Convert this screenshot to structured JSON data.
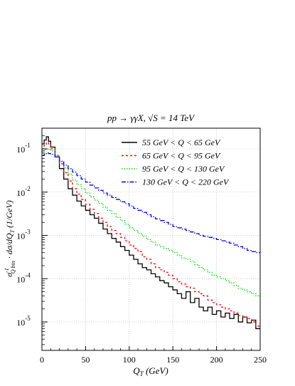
{
  "chart_data": {
    "type": "line",
    "title": "pp → γγX, √S = 14 TeV",
    "xlabel": "Q_T (GeV)",
    "ylabel": "σ_Qbin⁻¹ · dσ/dQ_T (1/GeV)",
    "xlim": [
      0,
      250
    ],
    "ylim": [
      2.2e-06,
      0.3
    ],
    "yscale": "log",
    "grid": true,
    "legend_position": "top-right",
    "x_ticks": [
      {
        "value": 0,
        "label": "0"
      },
      {
        "value": 50,
        "label": "50"
      },
      {
        "value": 100,
        "label": "100"
      },
      {
        "value": 150,
        "label": "150"
      },
      {
        "value": 200,
        "label": "200"
      },
      {
        "value": 250,
        "label": "250"
      }
    ],
    "y_ticks": [
      {
        "value": 0.1,
        "base": "10",
        "exp": "-1"
      },
      {
        "value": 0.01,
        "base": "10",
        "exp": "-2"
      },
      {
        "value": 0.001,
        "base": "10",
        "exp": "-3"
      },
      {
        "value": 0.0001,
        "base": "10",
        "exp": "-4"
      },
      {
        "value": 1e-05,
        "base": "10",
        "exp": "-5"
      }
    ],
    "x": [
      0,
      2.5,
      5,
      7.5,
      10,
      15,
      20,
      25,
      30,
      35,
      40,
      45,
      50,
      55,
      60,
      65,
      70,
      75,
      80,
      85,
      90,
      95,
      100,
      105,
      110,
      115,
      120,
      125,
      130,
      135,
      140,
      145,
      150,
      155,
      160,
      165,
      170,
      175,
      180,
      185,
      190,
      195,
      200,
      205,
      210,
      215,
      220,
      225,
      230,
      235,
      240,
      245,
      250
    ],
    "series": [
      {
        "name": "55 GeV < Q <  65 GeV",
        "color": "#000000",
        "dash": "solid",
        "values": [
          0.13,
          0.16,
          0.19,
          0.15,
          0.11,
          0.065,
          0.035,
          0.02,
          0.012,
          0.0085,
          0.0062,
          0.0048,
          0.0038,
          0.003,
          0.0025,
          0.0019,
          0.0014,
          0.0011,
          0.00085,
          0.0007,
          0.00055,
          0.00045,
          0.00035,
          0.00028,
          0.00022,
          0.00018,
          0.00016,
          0.00013,
          0.00011,
          9e-05,
          8e-05,
          6.5e-05,
          5.5e-05,
          4.5e-05,
          3.5e-05,
          5e-05,
          2.8e-05,
          3.5e-05,
          2.2e-05,
          1.8e-05,
          2.2e-05,
          1.5e-05,
          1.8e-05,
          1.3e-05,
          1.6e-05,
          1.2e-05,
          1.5e-05,
          1e-05,
          1.3e-05,
          9.5e-06,
          1.1e-05,
          7e-06,
          5.5e-06
        ]
      },
      {
        "name": "65 GeV < Q <  95 GeV",
        "color": "#ff0000",
        "dash": "3,3",
        "values": [
          0.1,
          0.12,
          0.14,
          0.13,
          0.1,
          0.07,
          0.045,
          0.028,
          0.018,
          0.012,
          0.009,
          0.0068,
          0.0052,
          0.004,
          0.0032,
          0.0025,
          0.002,
          0.0016,
          0.0013,
          0.0011,
          0.0009,
          0.00075,
          0.0006,
          0.0005,
          0.00042,
          0.00032,
          0.00028,
          0.00022,
          0.00018,
          0.00016,
          0.00014,
          0.00012,
          0.0001,
          8.5e-05,
          7.5e-05,
          6.5e-05,
          6e-05,
          5e-05,
          4.5e-05,
          4e-05,
          3.2e-05,
          2.8e-05,
          2.5e-05,
          2.2e-05,
          2e-05,
          1.8e-05,
          1.6e-05,
          1.4e-05,
          1.3e-05,
          1.2e-05,
          1e-05,
          8e-06,
          6e-06
        ]
      },
      {
        "name": "95 GeV < Q < 130 GeV",
        "color": "#00dd00",
        "dash": "1.5,2",
        "values": [
          0.085,
          0.095,
          0.1,
          0.098,
          0.09,
          0.07,
          0.05,
          0.036,
          0.026,
          0.019,
          0.015,
          0.012,
          0.0095,
          0.0078,
          0.0065,
          0.0055,
          0.0045,
          0.0038,
          0.0032,
          0.0026,
          0.0022,
          0.0018,
          0.0015,
          0.0013,
          0.0011,
          0.00095,
          0.0008,
          0.0007,
          0.0006,
          0.00055,
          0.0005,
          0.00045,
          0.0004,
          0.00035,
          0.0003,
          0.00028,
          0.00025,
          0.00021,
          0.00018,
          0.00016,
          0.00014,
          0.00012,
          0.00011,
          0.0001,
          9e-05,
          8e-05,
          7e-05,
          6e-05,
          5.5e-05,
          5e-05,
          4.5e-05,
          4e-05,
          3.5e-05
        ]
      },
      {
        "name": "130 GeV < Q < 220 GeV",
        "color": "#0000ff",
        "dash": "6,2,1.5,2",
        "values": [
          0.07,
          0.075,
          0.08,
          0.078,
          0.075,
          0.065,
          0.052,
          0.042,
          0.035,
          0.029,
          0.024,
          0.02,
          0.017,
          0.0145,
          0.0125,
          0.011,
          0.0095,
          0.0085,
          0.0075,
          0.0068,
          0.006,
          0.0054,
          0.0048,
          0.0042,
          0.0038,
          0.0034,
          0.003,
          0.0027,
          0.0024,
          0.0022,
          0.002,
          0.0018,
          0.0016,
          0.0015,
          0.0014,
          0.0013,
          0.0012,
          0.0011,
          0.001,
          0.00095,
          0.0009,
          0.00085,
          0.0008,
          0.00075,
          0.0007,
          0.00066,
          0.0006,
          0.00055,
          0.0005,
          0.00045,
          0.00042,
          0.0004,
          0.00038
        ]
      }
    ]
  }
}
